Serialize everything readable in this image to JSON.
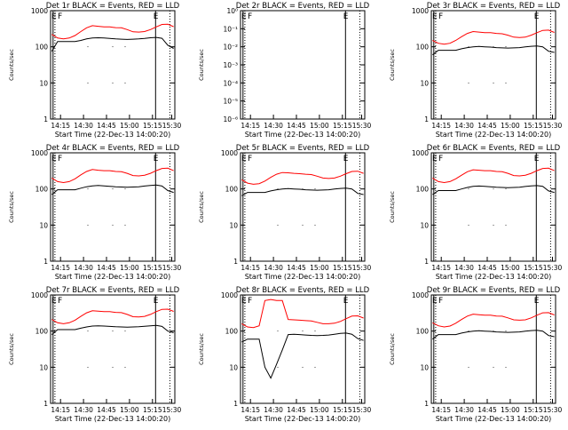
{
  "chart_data": [
    {
      "type": "line",
      "title": "Det 1r  BLACK = Events, RED = LLD",
      "xlabel": "Start Time (22-Dec-13 14:00:20)",
      "ylabel": "Counts/sec",
      "x_ticks": [
        "14:15",
        "14:30",
        "14:45",
        "15:00",
        "15:15",
        "15:30"
      ],
      "y_ticks": [
        "1",
        "10",
        "100",
        "1000"
      ],
      "ylim": [
        1,
        1200
      ],
      "yscale": "log",
      "markers": [
        "E",
        "F",
        "E"
      ],
      "series": [
        {
          "color": "#000000",
          "values": [
            75,
            140,
            140,
            140,
            140,
            150,
            165,
            175,
            178,
            175,
            170,
            165,
            162,
            160,
            162,
            165,
            170,
            178,
            182,
            172,
            110,
            90
          ]
        },
        {
          "color": "#ff0000",
          "values": [
            220,
            175,
            165,
            175,
            205,
            265,
            335,
            385,
            370,
            355,
            355,
            340,
            335,
            300,
            260,
            255,
            265,
            300,
            355,
            415,
            420,
            360
          ]
        }
      ]
    },
    {
      "type": "line",
      "title": "Det 2r  BLACK = Events, RED = LLD",
      "xlabel": "Start Time (22-Dec-13 14:00:20)",
      "ylabel": "Counts/sec",
      "x_ticks": [
        "14:15",
        "14:30",
        "14:45",
        "15:00",
        "15:15",
        "15:30"
      ],
      "y_ticks": [
        "10⁻⁶",
        "10⁻⁵",
        "10⁻⁴",
        "10⁻³",
        "10⁻²",
        "10⁻¹",
        "10⁰"
      ],
      "yscale": "log",
      "markers": [
        "E",
        "F",
        "E"
      ],
      "series": []
    },
    {
      "type": "line",
      "title": "Det 3r  BLACK = Events, RED = LLD",
      "xlabel": "Start Time (22-Dec-13 14:00:20)",
      "ylabel": "Counts/sec",
      "x_ticks": [
        "14:15",
        "14:30",
        "14:45",
        "15:00",
        "15:15",
        "15:30"
      ],
      "y_ticks": [
        "1",
        "10",
        "100",
        "1000"
      ],
      "ylim": [
        1,
        1200
      ],
      "yscale": "log",
      "markers": [
        "E",
        "F",
        "E"
      ],
      "series": [
        {
          "color": "#000000",
          "values": [
            60,
            80,
            80,
            80,
            80,
            88,
            95,
            100,
            102,
            100,
            98,
            95,
            93,
            92,
            93,
            95,
            100,
            103,
            105,
            100,
            75,
            70
          ]
        },
        {
          "color": "#ff0000",
          "values": [
            150,
            125,
            118,
            125,
            150,
            190,
            235,
            265,
            255,
            245,
            245,
            235,
            230,
            210,
            185,
            180,
            185,
            210,
            245,
            285,
            290,
            250
          ]
        }
      ]
    },
    {
      "type": "line",
      "title": "Det 4r  BLACK = Events, RED = LLD",
      "xlabel": "Start Time (22-Dec-13 14:00:20)",
      "ylabel": "Counts/sec",
      "x_ticks": [
        "14:15",
        "14:30",
        "14:45",
        "15:00",
        "15:15",
        "15:30"
      ],
      "y_ticks": [
        "1",
        "10",
        "100",
        "1000"
      ],
      "ylim": [
        1,
        1200
      ],
      "yscale": "log",
      "markers": [
        "E",
        "F",
        "E"
      ],
      "series": [
        {
          "color": "#000000",
          "values": [
            70,
            95,
            95,
            95,
            95,
            105,
            115,
            122,
            125,
            122,
            118,
            115,
            113,
            112,
            113,
            115,
            120,
            125,
            128,
            120,
            90,
            80
          ]
        },
        {
          "color": "#ff0000",
          "values": [
            200,
            160,
            150,
            160,
            190,
            245,
            305,
            345,
            330,
            320,
            320,
            305,
            300,
            270,
            235,
            230,
            240,
            270,
            320,
            370,
            375,
            320
          ]
        }
      ]
    },
    {
      "type": "line",
      "title": "Det 5r  BLACK = Events, RED = LLD",
      "xlabel": "Start Time (22-Dec-13 14:00:20)",
      "ylabel": "Counts/sec",
      "x_ticks": [
        "14:15",
        "14:30",
        "14:45",
        "15:00",
        "15:15",
        "15:30"
      ],
      "y_ticks": [
        "1",
        "10",
        "100",
        "1000"
      ],
      "ylim": [
        1,
        1200
      ],
      "yscale": "log",
      "markers": [
        "E",
        "F",
        "E"
      ],
      "series": [
        {
          "color": "#000000",
          "values": [
            65,
            80,
            80,
            80,
            80,
            88,
            95,
            100,
            102,
            100,
            98,
            95,
            93,
            92,
            93,
            95,
            100,
            103,
            105,
            100,
            75,
            70
          ]
        },
        {
          "color": "#ff0000",
          "values": [
            180,
            145,
            135,
            140,
            165,
            210,
            255,
            285,
            280,
            270,
            265,
            255,
            250,
            225,
            200,
            195,
            200,
            225,
            265,
            305,
            310,
            270
          ]
        }
      ]
    },
    {
      "type": "line",
      "title": "Det 6r  BLACK = Events, RED = LLD",
      "xlabel": "Start Time (22-Dec-13 14:00:20)",
      "ylabel": "Counts/sec",
      "x_ticks": [
        "14:15",
        "14:30",
        "14:45",
        "15:00",
        "15:15",
        "15:30"
      ],
      "y_ticks": [
        "1",
        "10",
        "100",
        "1000"
      ],
      "ylim": [
        1,
        1200
      ],
      "yscale": "log",
      "markers": [
        "E",
        "F",
        "E"
      ],
      "series": [
        {
          "color": "#000000",
          "values": [
            70,
            90,
            90,
            90,
            90,
            100,
            110,
            118,
            120,
            118,
            115,
            112,
            110,
            108,
            110,
            112,
            117,
            121,
            124,
            118,
            88,
            80
          ]
        },
        {
          "color": "#ff0000",
          "values": [
            200,
            160,
            150,
            160,
            190,
            240,
            300,
            340,
            330,
            320,
            320,
            305,
            300,
            270,
            235,
            230,
            240,
            270,
            320,
            370,
            375,
            320
          ]
        }
      ]
    },
    {
      "type": "line",
      "title": "Det 7r  BLACK = Events, RED = LLD",
      "xlabel": "Start Time (22-Dec-13 14:00:20)",
      "ylabel": "Counts/sec",
      "x_ticks": [
        "14:15",
        "14:30",
        "14:45",
        "15:00",
        "15:15",
        "15:30"
      ],
      "y_ticks": [
        "1",
        "10",
        "100",
        "1000"
      ],
      "ylim": [
        1,
        1200
      ],
      "yscale": "log",
      "markers": [
        "E",
        "F",
        "E"
      ],
      "series": [
        {
          "color": "#000000",
          "values": [
            80,
            110,
            110,
            110,
            110,
            120,
            130,
            138,
            140,
            138,
            135,
            132,
            130,
            128,
            130,
            132,
            136,
            140,
            143,
            135,
            100,
            90
          ]
        },
        {
          "color": "#ff0000",
          "values": [
            210,
            170,
            160,
            170,
            200,
            255,
            320,
            365,
            355,
            345,
            345,
            330,
            325,
            290,
            250,
            245,
            255,
            290,
            345,
            400,
            405,
            350
          ]
        }
      ]
    },
    {
      "type": "line",
      "title": "Det 8r  BLACK = Events, RED = LLD",
      "xlabel": "Start Time (22-Dec-13 14:00:20)",
      "ylabel": "Counts/sec",
      "x_ticks": [
        "14:15",
        "14:30",
        "14:45",
        "15:00",
        "15:15",
        "15:30"
      ],
      "y_ticks": [
        "1",
        "10",
        "100",
        "1000"
      ],
      "ylim": [
        1,
        1200
      ],
      "yscale": "log",
      "markers": [
        "E",
        "F",
        "E"
      ],
      "series": [
        {
          "color": "#000000",
          "values": [
            50,
            60,
            60,
            60,
            10,
            5,
            12,
            30,
            80,
            82,
            80,
            78,
            76,
            75,
            76,
            78,
            82,
            86,
            88,
            82,
            62,
            55
          ]
        },
        {
          "color": "#ff0000",
          "values": [
            160,
            130,
            125,
            140,
            700,
            750,
            700,
            700,
            210,
            205,
            200,
            195,
            190,
            175,
            160,
            160,
            165,
            185,
            220,
            260,
            265,
            230
          ]
        }
      ]
    },
    {
      "type": "line",
      "title": "Det 9r  BLACK = Events, RED = LLD",
      "xlabel": "Start Time (22-Dec-13 14:00:20)",
      "ylabel": "Counts/sec",
      "x_ticks": [
        "14:15",
        "14:30",
        "14:45",
        "15:00",
        "15:15",
        "15:30"
      ],
      "y_ticks": [
        "1",
        "10",
        "100",
        "1000"
      ],
      "ylim": [
        1,
        1200
      ],
      "yscale": "log",
      "markers": [
        "E",
        "F",
        "E"
      ],
      "series": [
        {
          "color": "#000000",
          "values": [
            60,
            80,
            80,
            80,
            80,
            88,
            95,
            100,
            102,
            100,
            98,
            95,
            93,
            92,
            93,
            95,
            100,
            103,
            105,
            100,
            75,
            70
          ]
        },
        {
          "color": "#ff0000",
          "values": [
            170,
            140,
            130,
            138,
            165,
            210,
            260,
            295,
            285,
            275,
            275,
            262,
            258,
            232,
            205,
            200,
            205,
            232,
            275,
            320,
            325,
            280
          ]
        }
      ]
    }
  ]
}
